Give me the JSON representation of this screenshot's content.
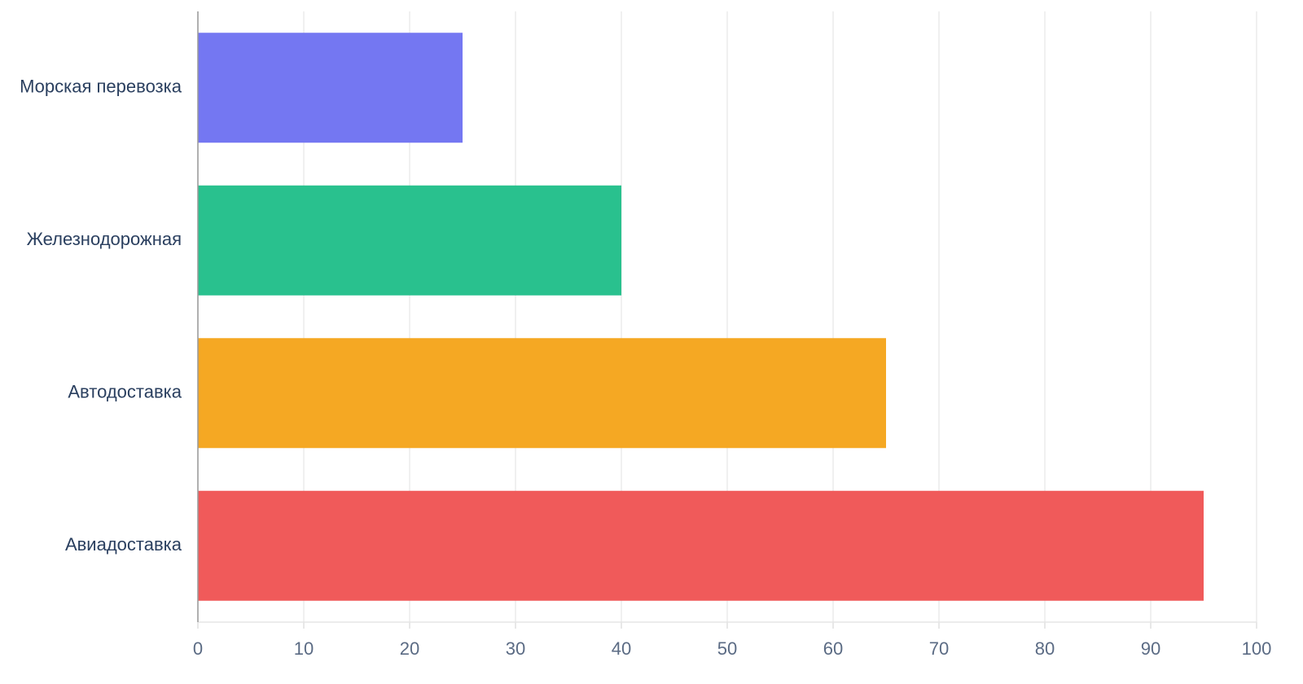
{
  "chart_data": {
    "type": "bar",
    "orientation": "horizontal",
    "categories": [
      "Морская перевозка",
      "Железнодорожная",
      "Автодоставка",
      "Авиадоставка"
    ],
    "values": [
      25,
      40,
      65,
      95
    ],
    "colors": [
      "#7477f2",
      "#29c18e",
      "#f5a823",
      "#f05a5a"
    ],
    "xlim": [
      0,
      100
    ],
    "xticks": [
      0,
      10,
      20,
      30,
      40,
      50,
      60,
      70,
      80,
      90,
      100
    ],
    "grid": true
  }
}
